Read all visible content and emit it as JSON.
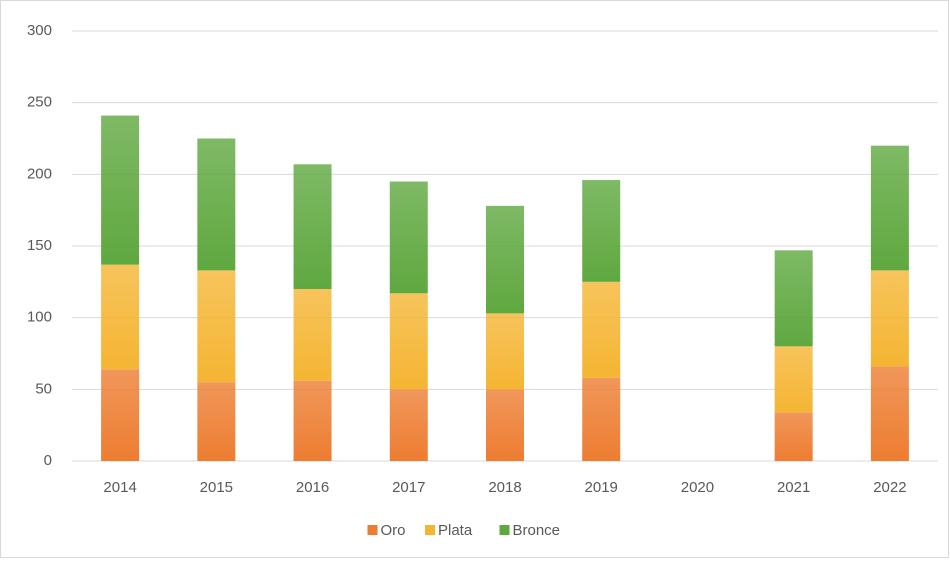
{
  "chart_data": {
    "type": "stacked_bar",
    "categories": [
      "2014",
      "2015",
      "2016",
      "2017",
      "2018",
      "2019",
      "2020",
      "2021",
      "2022"
    ],
    "series": [
      {
        "name": "Oro",
        "color": "#ed7d31",
        "values": [
          64,
          55,
          56,
          50,
          50,
          58,
          null,
          34,
          66
        ]
      },
      {
        "name": "Plata",
        "color": "#f5b533",
        "values": [
          73,
          78,
          64,
          67,
          53,
          67,
          null,
          46,
          67
        ]
      },
      {
        "name": "Bronce",
        "color": "#5fa83f",
        "values": [
          104,
          92,
          87,
          78,
          75,
          71,
          null,
          67,
          87
        ]
      }
    ],
    "ylim": [
      0,
      300
    ],
    "yticks": [
      0,
      50,
      100,
      150,
      200,
      250,
      300
    ],
    "grid": true,
    "legend": "bottom"
  }
}
